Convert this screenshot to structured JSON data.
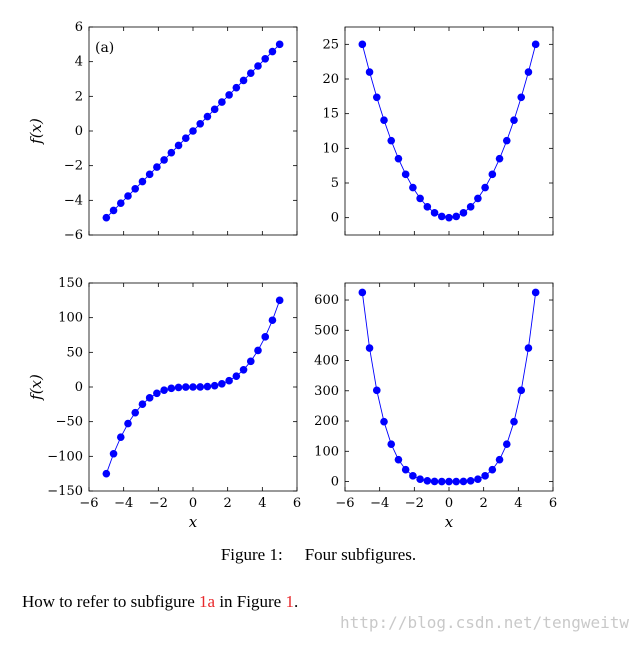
{
  "chart_data": [
    {
      "type": "scatter",
      "function": "x",
      "x": [
        -5,
        -4.5833,
        -4.1667,
        -3.75,
        -3.3333,
        -2.9167,
        -2.5,
        -2.0833,
        -1.6667,
        -1.25,
        -0.8333,
        -0.4167,
        0,
        0.4167,
        0.8333,
        1.25,
        1.6667,
        2.0833,
        2.5,
        2.9167,
        3.3333,
        3.75,
        4.1667,
        4.5833,
        5
      ],
      "y": [
        -5,
        -4.5833,
        -4.1667,
        -3.75,
        -3.3333,
        -2.9167,
        -2.5,
        -2.0833,
        -1.6667,
        -1.25,
        -0.8333,
        -0.4167,
        0,
        0.4167,
        0.8333,
        1.25,
        1.6667,
        2.0833,
        2.5,
        2.9167,
        3.3333,
        3.75,
        4.1667,
        4.5833,
        5
      ],
      "xlim": [
        -6,
        6
      ],
      "ylim": [
        -6,
        6
      ],
      "yticks": [
        -6,
        -4,
        -2,
        0,
        2,
        4,
        6
      ],
      "ytick_labels": [
        "−6",
        "−4",
        "−2",
        "0",
        "2",
        "4",
        "6"
      ],
      "ylabel": "f(x)",
      "xlabel": "",
      "annotation": "(a)",
      "color": "#0000ff"
    },
    {
      "type": "scatter",
      "function": "x^2",
      "x": [
        -5,
        -4.5833,
        -4.1667,
        -3.75,
        -3.3333,
        -2.9167,
        -2.5,
        -2.0833,
        -1.6667,
        -1.25,
        -0.8333,
        -0.4167,
        0,
        0.4167,
        0.8333,
        1.25,
        1.6667,
        2.0833,
        2.5,
        2.9167,
        3.3333,
        3.75,
        4.1667,
        4.5833,
        5
      ],
      "y": [
        25,
        21.007,
        17.361,
        14.063,
        11.111,
        8.507,
        6.25,
        4.34,
        2.778,
        1.563,
        0.694,
        0.174,
        0,
        0.174,
        0.694,
        1.563,
        2.778,
        4.34,
        6.25,
        8.507,
        11.111,
        14.063,
        17.361,
        21.007,
        25
      ],
      "xlim": [
        -6,
        6
      ],
      "ylim": [
        -2.5,
        27.5
      ],
      "yticks": [
        0,
        5,
        10,
        15,
        20,
        25
      ],
      "ytick_labels": [
        "0",
        "5",
        "10",
        "15",
        "20",
        "25"
      ],
      "ylabel": "",
      "xlabel": "",
      "color": "#0000ff"
    },
    {
      "type": "scatter",
      "function": "x^3",
      "x": [
        -5,
        -4.5833,
        -4.1667,
        -3.75,
        -3.3333,
        -2.9167,
        -2.5,
        -2.0833,
        -1.6667,
        -1.25,
        -0.8333,
        -0.4167,
        0,
        0.4167,
        0.8333,
        1.25,
        1.6667,
        2.0833,
        2.5,
        2.9167,
        3.3333,
        3.75,
        4.1667,
        4.5833,
        5
      ],
      "y": [
        -125,
        -96.28,
        -72.34,
        -52.73,
        -37.04,
        -24.81,
        -15.63,
        -9.04,
        -4.63,
        -1.95,
        -0.58,
        -0.07,
        0,
        0.07,
        0.58,
        1.95,
        4.63,
        9.04,
        15.63,
        24.81,
        37.04,
        52.73,
        72.34,
        96.28,
        125
      ],
      "xlim": [
        -6,
        6
      ],
      "ylim": [
        -150,
        150
      ],
      "xticks": [
        -6,
        -4,
        -2,
        0,
        2,
        4,
        6
      ],
      "xtick_labels": [
        "−6",
        "−4",
        "−2",
        "0",
        "2",
        "4",
        "6"
      ],
      "yticks": [
        -150,
        -100,
        -50,
        0,
        50,
        100,
        150
      ],
      "ytick_labels": [
        "−150",
        "−100",
        "−50",
        "0",
        "50",
        "100",
        "150"
      ],
      "ylabel": "f(x)",
      "xlabel": "x",
      "color": "#0000ff"
    },
    {
      "type": "scatter",
      "function": "x^4",
      "x": [
        -5,
        -4.5833,
        -4.1667,
        -3.75,
        -3.3333,
        -2.9167,
        -2.5,
        -2.0833,
        -1.6667,
        -1.25,
        -0.8333,
        -0.4167,
        0,
        0.4167,
        0.8333,
        1.25,
        1.6667,
        2.0833,
        2.5,
        2.9167,
        3.3333,
        3.75,
        4.1667,
        4.5833,
        5
      ],
      "y": [
        625,
        441.3,
        301.4,
        197.8,
        123.5,
        72.4,
        39.1,
        18.8,
        7.7,
        2.4,
        0.5,
        0.03,
        0,
        0.03,
        0.5,
        2.4,
        7.7,
        18.8,
        39.1,
        72.4,
        123.5,
        197.8,
        301.4,
        441.3,
        625
      ],
      "xlim": [
        -6,
        6
      ],
      "ylim": [
        -31.25,
        656.25
      ],
      "xticks": [
        -6,
        -4,
        -2,
        0,
        2,
        4,
        6
      ],
      "xtick_labels": [
        "−6",
        "−4",
        "−2",
        "0",
        "2",
        "4",
        "6"
      ],
      "yticks": [
        0,
        100,
        200,
        300,
        400,
        500,
        600
      ],
      "ytick_labels": [
        "0",
        "100",
        "200",
        "300",
        "400",
        "500",
        "600"
      ],
      "ylabel": "",
      "xlabel": "x",
      "color": "#0000ff"
    }
  ],
  "caption": {
    "label": "Figure 1:",
    "text": "Four subfigures."
  },
  "body": {
    "prefix": "How to refer to subfigure ",
    "ref1": "1a",
    "middle": " in Figure ",
    "ref2": "1",
    "suffix": "."
  },
  "watermark": "http://blog.csdn.net/tengweitw"
}
